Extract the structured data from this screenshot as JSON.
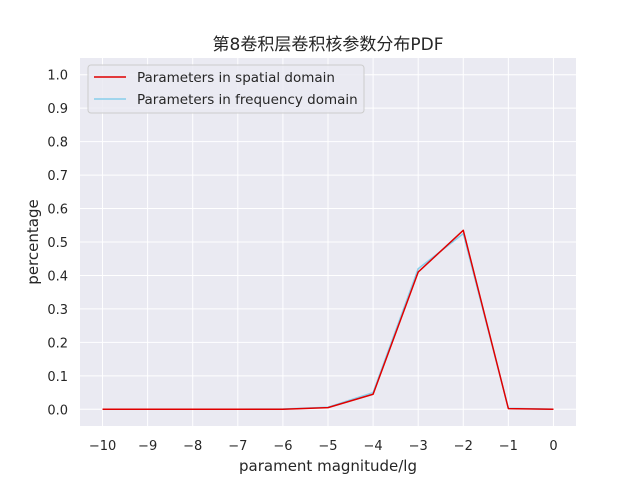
{
  "chart_data": {
    "type": "line",
    "title": "第8卷积层卷积核参数分布PDF",
    "xlabel": "parament magnitude/lg",
    "ylabel": "percentage",
    "x": [
      -10,
      -9,
      -8,
      -7,
      -6,
      -5,
      -4,
      -3,
      -2,
      -1,
      0
    ],
    "xticks": [
      "−10",
      "−9",
      "−8",
      "−7",
      "−6",
      "−5",
      "−4",
      "−3",
      "−2",
      "−1",
      "0"
    ],
    "yticks": [
      "0.0",
      "0.1",
      "0.2",
      "0.3",
      "0.4",
      "0.5",
      "0.6",
      "0.7",
      "0.8",
      "0.9",
      "1.0"
    ],
    "xlim": [
      -10.5,
      0.5
    ],
    "ylim": [
      -0.05,
      1.05
    ],
    "grid": true,
    "legend_position": "top-left",
    "series": [
      {
        "name": "Parameters in spatial domain",
        "color": "#e00000",
        "values": [
          0.0,
          0.0,
          0.0,
          0.0,
          0.0,
          0.005,
          0.045,
          0.41,
          0.535,
          0.002,
          0.0
        ]
      },
      {
        "name": "Parameters in frequency domain",
        "color": "#87ceeb",
        "values": [
          0.0,
          0.0,
          0.0,
          0.0,
          0.001,
          0.006,
          0.05,
          0.42,
          0.525,
          0.003,
          0.0
        ]
      }
    ]
  }
}
